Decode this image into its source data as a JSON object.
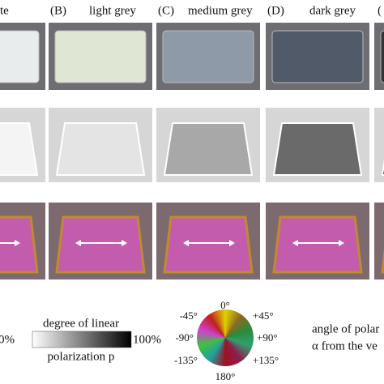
{
  "headers": [
    "te",
    "(B)",
    "light grey",
    "(C)",
    "medium grey",
    "(D)",
    "dark grey",
    "("
  ],
  "legend_p": {
    "title_top": "degree of linear",
    "title_bottom": "polarization p",
    "min": "0%",
    "max": "100%"
  },
  "legend_angle": {
    "ticks": [
      "0°",
      "-45°",
      "+45°",
      "-90°",
      "+90°",
      "-135°",
      "+135°",
      "180°"
    ],
    "line1": "angle of polar",
    "line2": "α from the ve"
  }
}
